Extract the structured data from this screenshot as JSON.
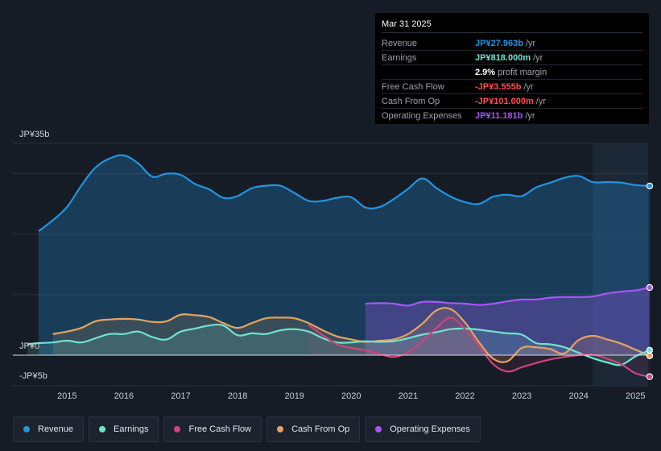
{
  "tooltip": {
    "date": "Mar 31 2025",
    "rows": [
      {
        "label": "Revenue",
        "value": "JP¥27.963b",
        "unit": "/yr",
        "color": "#2394df"
      },
      {
        "label": "Earnings",
        "value": "JP¥818.000m",
        "unit": "/yr",
        "color": "#6fe3d1"
      },
      {
        "label": "",
        "value": "2.9%",
        "unit": "profit margin",
        "color": "#ffffff"
      },
      {
        "label": "Free Cash Flow",
        "value": "-JP¥3.555b",
        "unit": "/yr",
        "color": "#ff4d4f"
      },
      {
        "label": "Cash From Op",
        "value": "-JP¥101.000m",
        "unit": "/yr",
        "color": "#ff4d4f"
      },
      {
        "label": "Operating Expenses",
        "value": "JP¥11.181b",
        "unit": "/yr",
        "color": "#a855f7"
      }
    ]
  },
  "chart_data": {
    "type": "area",
    "title": "",
    "y_unit": "JP¥ billions",
    "ylim": [
      -5,
      35
    ],
    "xlim": [
      2014.3,
      2025.3
    ],
    "y_tick_labels": [
      {
        "value": 35,
        "label": "JP¥35b"
      },
      {
        "value": 0,
        "label": "JP¥0"
      },
      {
        "value": -5,
        "label": "-JP¥5b"
      }
    ],
    "x_ticks": [
      "2015",
      "2016",
      "2017",
      "2018",
      "2019",
      "2020",
      "2021",
      "2022",
      "2023",
      "2024",
      "2025"
    ],
    "highlight_from": 2024.25,
    "series": [
      {
        "name": "Revenue",
        "color": "#2394df",
        "x": [
          2014.5,
          2014.75,
          2015.0,
          2015.25,
          2015.5,
          2015.75,
          2016.0,
          2016.25,
          2016.5,
          2016.75,
          2017.0,
          2017.25,
          2017.5,
          2017.75,
          2018.0,
          2018.25,
          2018.5,
          2018.75,
          2019.0,
          2019.25,
          2019.5,
          2019.75,
          2020.0,
          2020.25,
          2020.5,
          2020.75,
          2021.0,
          2021.25,
          2021.5,
          2021.75,
          2022.0,
          2022.25,
          2022.5,
          2022.75,
          2023.0,
          2023.25,
          2023.5,
          2023.75,
          2024.0,
          2024.25,
          2024.5,
          2024.75,
          2025.0,
          2025.25
        ],
        "y": [
          20.5,
          22.3,
          24.5,
          28.0,
          31.0,
          32.5,
          33.0,
          31.7,
          29.5,
          30.0,
          29.8,
          28.3,
          27.4,
          26.0,
          26.3,
          27.6,
          28.0,
          28.0,
          26.8,
          25.5,
          25.5,
          26.0,
          26.1,
          24.4,
          24.5,
          25.8,
          27.5,
          29.2,
          27.6,
          26.2,
          25.3,
          25.0,
          26.2,
          26.5,
          26.3,
          27.7,
          28.5,
          29.3,
          29.6,
          28.6,
          28.6,
          28.5,
          28.1,
          27.96
        ]
      },
      {
        "name": "Earnings",
        "color": "#6fe3d1",
        "x": [
          2014.3,
          2014.5,
          2014.75,
          2015.0,
          2015.25,
          2015.5,
          2015.75,
          2016.0,
          2016.25,
          2016.5,
          2016.75,
          2017.0,
          2017.25,
          2017.5,
          2017.75,
          2018.0,
          2018.25,
          2018.5,
          2018.75,
          2019.0,
          2019.25,
          2019.5,
          2019.75,
          2020.0,
          2020.25,
          2020.5,
          2020.75,
          2021.0,
          2021.25,
          2021.5,
          2021.75,
          2022.0,
          2022.25,
          2022.5,
          2022.75,
          2023.0,
          2023.25,
          2023.5,
          2023.75,
          2024.0,
          2024.25,
          2024.5,
          2024.75,
          2025.0,
          2025.25
        ],
        "y": [
          1.8,
          2.0,
          2.1,
          2.4,
          2.1,
          2.8,
          3.5,
          3.5,
          3.9,
          3.0,
          2.6,
          3.9,
          4.4,
          4.9,
          4.9,
          3.3,
          3.6,
          3.5,
          4.1,
          4.3,
          3.9,
          2.8,
          2.1,
          2.1,
          2.3,
          2.2,
          2.3,
          2.8,
          3.4,
          3.8,
          4.3,
          4.4,
          4.2,
          3.9,
          3.6,
          3.4,
          2.0,
          1.8,
          1.3,
          0.4,
          -0.5,
          -1.2,
          -1.6,
          -0.2,
          0.818
        ]
      },
      {
        "name": "Free Cash Flow",
        "color": "#d0437c",
        "x": [
          2019.25,
          2019.5,
          2019.75,
          2020.0,
          2020.25,
          2020.5,
          2020.75,
          2021.0,
          2021.25,
          2021.5,
          2021.75,
          2022.0,
          2022.25,
          2022.5,
          2022.75,
          2023.0,
          2023.25,
          2023.5,
          2023.75,
          2024.0,
          2024.25,
          2024.5,
          2024.75,
          2025.0,
          2025.25
        ],
        "y": [
          5.0,
          3.3,
          1.8,
          1.2,
          0.8,
          0.2,
          -0.3,
          0.5,
          2.3,
          4.5,
          6.2,
          4.3,
          1.5,
          -1.5,
          -2.7,
          -2.0,
          -1.3,
          -0.7,
          -0.3,
          0.0,
          0.1,
          -0.6,
          -1.5,
          -3.0,
          -3.555
        ]
      },
      {
        "name": "Cash From Op",
        "color": "#e5a45c",
        "x": [
          2014.75,
          2015.0,
          2015.25,
          2015.5,
          2015.75,
          2016.0,
          2016.25,
          2016.5,
          2016.75,
          2017.0,
          2017.25,
          2017.5,
          2017.75,
          2018.0,
          2018.25,
          2018.5,
          2018.75,
          2019.0,
          2019.25,
          2019.5,
          2019.75,
          2020.0,
          2020.25,
          2020.5,
          2020.75,
          2021.0,
          2021.25,
          2021.5,
          2021.75,
          2022.0,
          2022.25,
          2022.5,
          2022.75,
          2023.0,
          2023.25,
          2023.5,
          2023.75,
          2024.0,
          2024.25,
          2024.5,
          2024.75,
          2025.0,
          2025.25
        ],
        "y": [
          3.5,
          3.9,
          4.5,
          5.6,
          5.9,
          6.0,
          5.9,
          5.5,
          5.6,
          6.7,
          6.6,
          6.3,
          5.3,
          4.5,
          5.3,
          6.1,
          6.2,
          6.1,
          5.3,
          4.1,
          3.1,
          2.6,
          2.2,
          2.4,
          2.6,
          3.5,
          5.2,
          7.4,
          7.6,
          5.4,
          2.1,
          -0.6,
          -1.0,
          1.2,
          1.3,
          1.0,
          0.3,
          2.5,
          3.2,
          2.6,
          1.9,
          0.9,
          -0.101
        ]
      },
      {
        "name": "Operating Expenses",
        "color": "#a855f7",
        "x": [
          2020.25,
          2020.5,
          2020.75,
          2021.0,
          2021.25,
          2021.5,
          2021.75,
          2022.0,
          2022.25,
          2022.5,
          2022.75,
          2023.0,
          2023.25,
          2023.5,
          2023.75,
          2024.0,
          2024.25,
          2024.5,
          2024.75,
          2025.0,
          2025.25
        ],
        "y": [
          8.5,
          8.6,
          8.5,
          8.2,
          8.8,
          8.8,
          8.6,
          8.5,
          8.3,
          8.5,
          8.9,
          9.2,
          9.2,
          9.5,
          9.6,
          9.6,
          9.7,
          10.2,
          10.5,
          10.7,
          11.181
        ]
      }
    ]
  },
  "legend": [
    {
      "label": "Revenue",
      "color": "#2394df"
    },
    {
      "label": "Earnings",
      "color": "#6fe3d1"
    },
    {
      "label": "Free Cash Flow",
      "color": "#d0437c"
    },
    {
      "label": "Cash From Op",
      "color": "#e5a45c"
    },
    {
      "label": "Operating Expenses",
      "color": "#a855f7"
    }
  ]
}
